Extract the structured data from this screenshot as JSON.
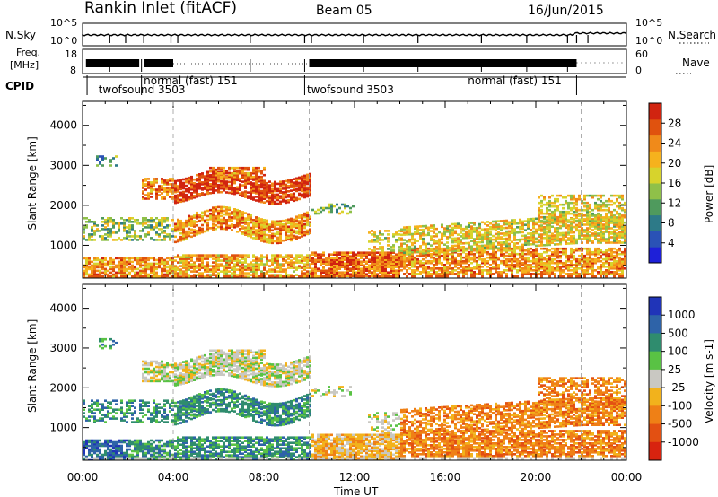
{
  "header": {
    "station": "Rankin Inlet (fitACF)",
    "beam": "Beam 05",
    "date": "16/Jun/2015"
  },
  "panel_labels": {
    "nsky": "N.Sky",
    "freq_line1": "Freq.",
    "freq_line2": "[MHz]",
    "cpid": "CPID",
    "nsearch": "N.Search",
    "nave": "Nave",
    "nsky_top": "10^5",
    "nsky_bot": "10^0",
    "freq_top": "18",
    "freq_bot": "8",
    "nave_top": "60",
    "nave_bot": "0",
    "nsearch_top": "10^5",
    "nsearch_bot": "10^0"
  },
  "cpid_segments": [
    {
      "label": "twofsound 3503",
      "start_h": 0.7
    },
    {
      "label": "normal (fast) 151",
      "start_h": 2.7
    },
    {
      "label": "twofsound 3503",
      "start_h": 9.9
    },
    {
      "label": "normal (fast) 151",
      "start_h": 17.0
    }
  ],
  "chart_data": [
    {
      "type": "heatmap",
      "title": "Power [dB]",
      "xlabel": "Time UT",
      "ylabel": "Slant Range [km]",
      "xlim_hours": [
        0,
        24
      ],
      "ylim_km": [
        180,
        4600
      ],
      "x_ticks": [
        "00:00",
        "04:00",
        "08:00",
        "12:00",
        "16:00",
        "20:00",
        "00:00"
      ],
      "y_ticks": [
        1000,
        2000,
        3000,
        4000
      ],
      "colorbar_label": "Power [dB]",
      "colorbar_ticks": [
        "4",
        "8",
        "12",
        "16",
        "20",
        "24",
        "28"
      ],
      "colorbar_colors": [
        "#1e20d8",
        "#2a52b6",
        "#2d7a88",
        "#4f9a5d",
        "#8fc049",
        "#d7d32c",
        "#f6b21d",
        "#f08a1a",
        "#e0520e",
        "#d12410"
      ],
      "dashed_lines_hours": [
        4,
        10,
        22
      ]
    },
    {
      "type": "heatmap",
      "title": "Velocity [m s-1]",
      "xlabel": "Time UT",
      "ylabel": "Slant Range [km]",
      "xlim_hours": [
        0,
        24
      ],
      "ylim_km": [
        180,
        4600
      ],
      "x_ticks": [
        "00:00",
        "04:00",
        "08:00",
        "12:00",
        "16:00",
        "20:00",
        "00:00"
      ],
      "y_ticks": [
        1000,
        2000,
        3000,
        4000
      ],
      "colorbar_label": "Velocity [m s-1]",
      "colorbar_ticks": [
        "1000",
        "500",
        "100",
        "25",
        "-25",
        "-100",
        "-500",
        "-1000"
      ],
      "colorbar_colors": [
        "#2034b8",
        "#2e63a8",
        "#2f8c6e",
        "#59c244",
        "#c9c8c2",
        "#f2b21c",
        "#ef8016",
        "#e35012",
        "#d8230f"
      ],
      "dashed_lines_hours": [
        4,
        10,
        22
      ]
    }
  ]
}
